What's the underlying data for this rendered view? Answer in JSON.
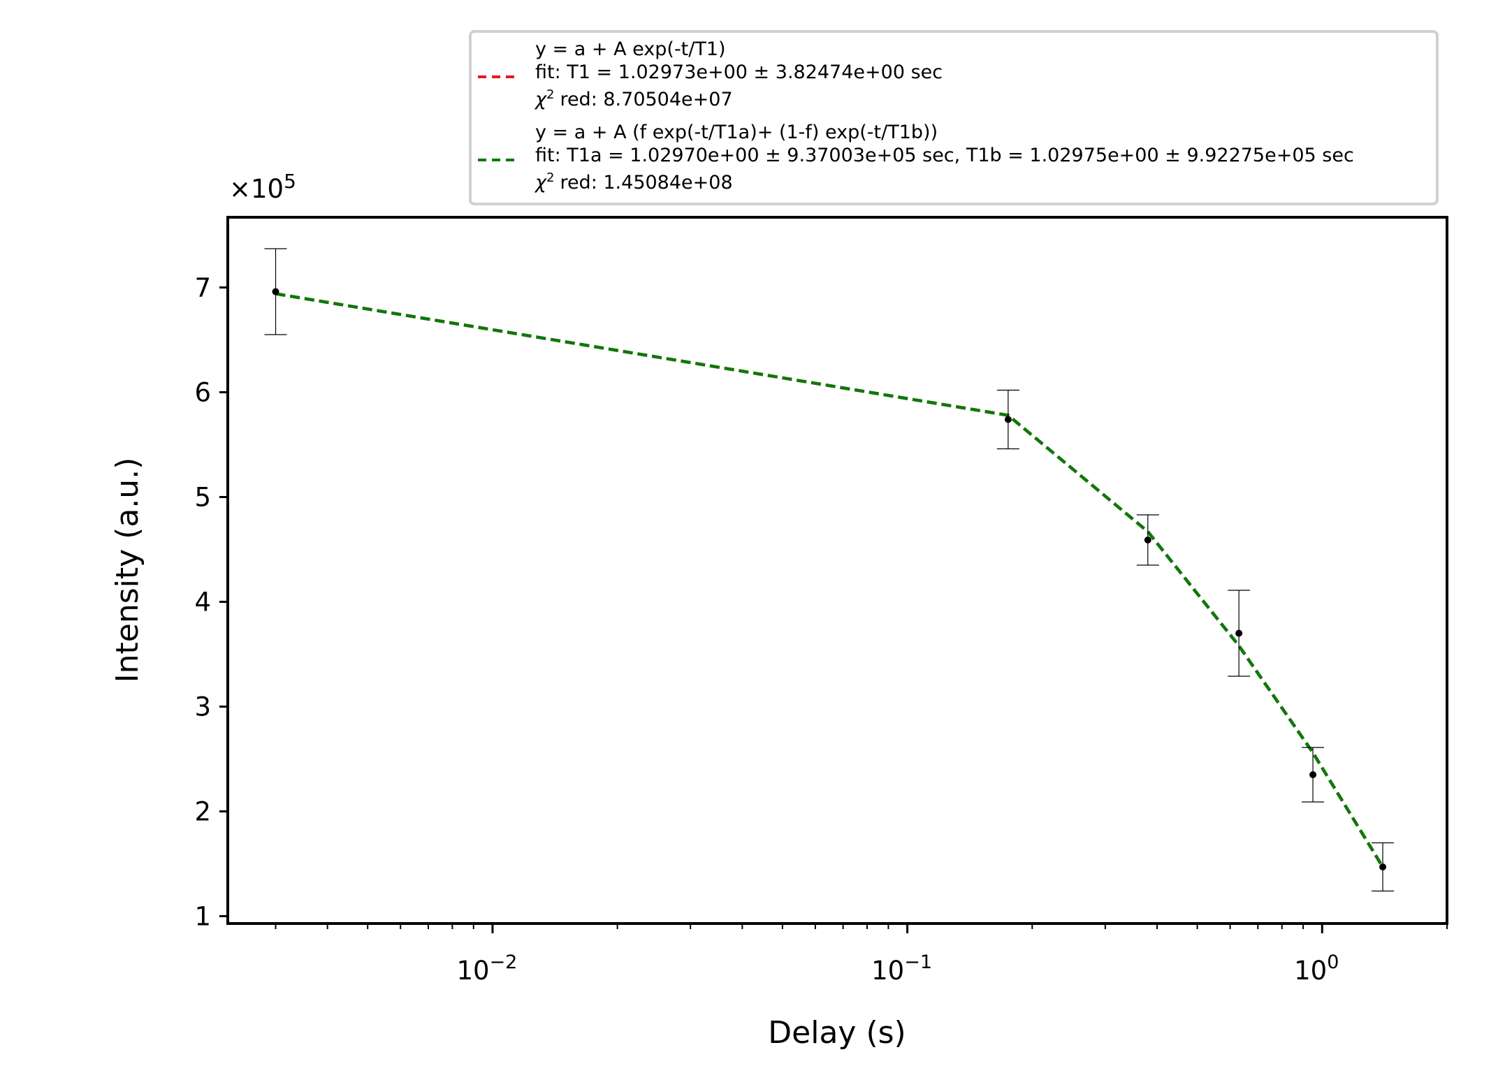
{
  "chart_data": {
    "type": "scatter",
    "xscale": "log",
    "xlabel": "Delay (s)",
    "ylabel": "Intensity (a.u.)",
    "y_multiplier": "×10^5",
    "xlim": [
      0.0023,
      2.0
    ],
    "ylim": [
      0.93,
      7.67
    ],
    "x_ticks": [
      {
        "value": 0.01,
        "base": "10",
        "exp": "−2"
      },
      {
        "value": 0.1,
        "base": "10",
        "exp": "−1"
      },
      {
        "value": 1,
        "base": "10",
        "exp": "0"
      }
    ],
    "y_ticks": [
      1,
      2,
      3,
      4,
      5,
      6,
      7
    ],
    "grid": false,
    "legend_position": "top",
    "data": {
      "x": [
        0.003,
        0.175,
        0.38,
        0.63,
        0.95,
        1.4
      ],
      "y": [
        6.96,
        5.74,
        4.59,
        3.7,
        2.35,
        1.47
      ],
      "yerr": [
        0.41,
        0.28,
        0.24,
        0.41,
        0.26,
        0.23
      ]
    },
    "series": [
      {
        "name": "y = a + A exp(-t/T1)",
        "fit_label": "fit: T1 = 1.02973e+00 ± 3.82474e+00 sec",
        "chi_label": "red: 8.70504e+07",
        "color": "#e31a1c",
        "x": [
          0.003,
          0.175,
          0.38,
          0.63,
          0.95,
          1.4
        ],
        "y": [
          6.94,
          5.78,
          4.67,
          3.58,
          2.56,
          1.47
        ]
      },
      {
        "name": "y = a + A (f exp(-t/T1a)+ (1-f) exp(-t/T1b))",
        "fit_label": "fit: T1a = 1.02970e+00 ± 9.37003e+05 sec, T1b = 1.02975e+00 ± 9.92275e+05 sec",
        "chi_label": "red: 1.45084e+08",
        "color": "#0a7a0a",
        "x": [
          0.003,
          0.175,
          0.38,
          0.63,
          0.95,
          1.4
        ],
        "y": [
          6.94,
          5.78,
          4.67,
          3.58,
          2.56,
          1.47
        ]
      }
    ],
    "chi_symbol": "χ"
  }
}
